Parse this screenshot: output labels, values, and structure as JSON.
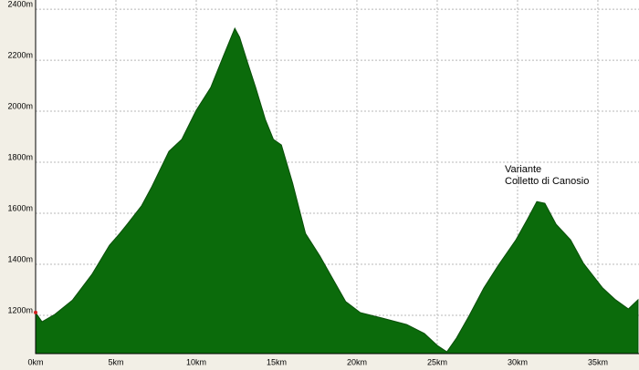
{
  "chart_data": {
    "type": "area",
    "color": "#0b6b0b",
    "grid": true,
    "x": [
      0,
      0.4,
      1.2,
      2.3,
      3.5,
      4.6,
      5.2,
      5.7,
      6.6,
      7.2,
      8.3,
      9.1,
      10,
      10.9,
      11.7,
      12.4,
      12.7,
      13.2,
      13.7,
      14.3,
      14.8,
      15.3,
      16,
      16.8,
      17.7,
      18.5,
      19.3,
      20.2,
      21.6,
      23.1,
      24.2,
      25,
      25.6,
      26.2,
      27,
      27.9,
      28.8,
      29.9,
      30.6,
      31.2,
      31.7,
      32.4,
      33.3,
      34.1,
      35.3,
      36.1,
      36.9,
      37.5
    ],
    "values": [
      1211,
      1175,
      1204,
      1260,
      1360,
      1475,
      1518,
      1557,
      1630,
      1700,
      1843,
      1890,
      2004,
      2093,
      2218,
      2325,
      2290,
      2190,
      2093,
      1968,
      1890,
      1868,
      1718,
      1521,
      1432,
      1343,
      1254,
      1211,
      1189,
      1164,
      1129,
      1082,
      1057,
      1111,
      1200,
      1307,
      1396,
      1496,
      1575,
      1646,
      1639,
      1557,
      1496,
      1404,
      1307,
      1261,
      1225,
      1261
    ],
    "xlim": [
      0,
      37.56
    ],
    "ylim": [
      1050,
      2436
    ],
    "xticks": [
      {
        "value": 0,
        "label": "0km"
      },
      {
        "value": 5,
        "label": "5km"
      },
      {
        "value": 10,
        "label": "10km"
      },
      {
        "value": 15,
        "label": "15km"
      },
      {
        "value": 20,
        "label": "20km"
      },
      {
        "value": 25,
        "label": "25km"
      },
      {
        "value": 30,
        "label": "30km"
      },
      {
        "value": 35,
        "label": "35km"
      }
    ],
    "yticks": [
      {
        "value": 1200,
        "label": "1200m"
      },
      {
        "value": 1400,
        "label": "1400m"
      },
      {
        "value": 1600,
        "label": "1600m"
      },
      {
        "value": 1800,
        "label": "1800m"
      },
      {
        "value": 2000,
        "label": "2000m"
      },
      {
        "value": 2200,
        "label": "2200m"
      },
      {
        "value": 2400,
        "label": "2400m"
      }
    ],
    "annotation": {
      "lines": [
        "Variante",
        "Colletto di Canosio"
      ]
    }
  }
}
